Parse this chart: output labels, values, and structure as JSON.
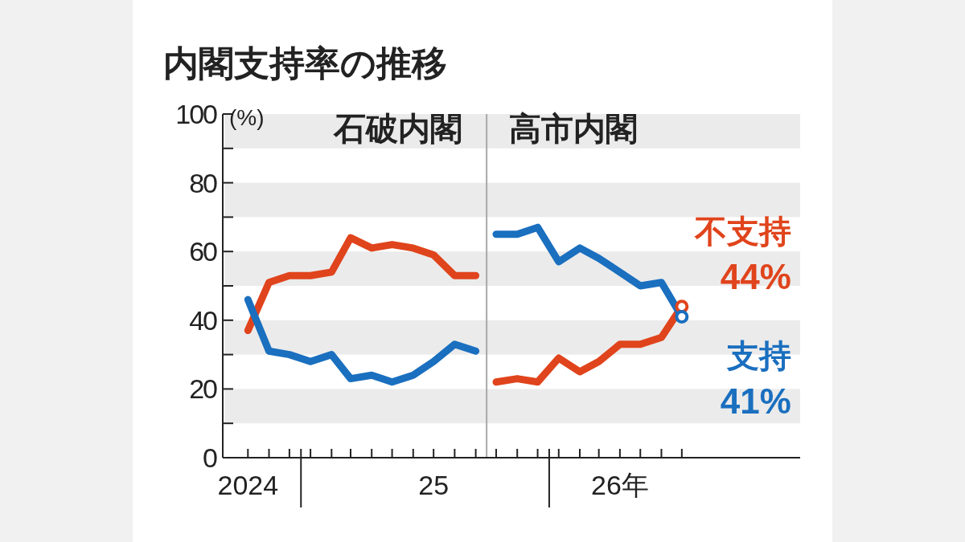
{
  "chart_data": {
    "type": "line",
    "title": "内閣支持率の推移",
    "ylabel": "(%)",
    "xlim": [
      "2024-09-08",
      "2027-01-05"
    ],
    "xticks": [
      {
        "value": "2024-10-15",
        "label": "2024"
      },
      {
        "value": "2024-11-15",
        "label": null
      },
      {
        "value": "2024-12-15",
        "label": null
      },
      {
        "value": "2025-01-01",
        "label": null
      },
      {
        "value": "2025-01-15",
        "label": null
      },
      {
        "value": "2025-02-15",
        "label": null
      },
      {
        "value": "2025-03-15",
        "label": null
      },
      {
        "value": "2025-04-15",
        "label": null
      },
      {
        "value": "2025-05-15",
        "label": null
      },
      {
        "value": "2025-06-15",
        "label": null
      },
      {
        "value": "2025-07-15",
        "label": "25"
      },
      {
        "value": "2025-08-15",
        "label": null
      },
      {
        "value": "2025-09-15",
        "label": null
      },
      {
        "value": "2025-10-15",
        "label": null
      },
      {
        "value": "2025-11-15",
        "label": null
      },
      {
        "value": "2025-12-15",
        "label": null
      },
      {
        "value": "2026-01-01",
        "label": null
      },
      {
        "value": "2026-01-15",
        "label": null
      },
      {
        "value": "2026-02-15",
        "label": null
      },
      {
        "value": "2026-03-15",
        "label": null
      },
      {
        "value": "2026-04-15",
        "label": "26年"
      },
      {
        "value": "2026-05-15",
        "label": null
      },
      {
        "value": "2026-06-15",
        "label": null
      },
      {
        "value": "2026-07-15",
        "label": null
      }
    ],
    "ylim": [
      0,
      100
    ],
    "yticks": [
      0,
      {
        "value": 10,
        "label": null
      },
      20,
      {
        "value": 30,
        "label": null
      },
      40,
      {
        "value": 50,
        "label": null
      },
      60,
      {
        "value": 70,
        "label": null
      },
      80,
      {
        "value": 90,
        "label": null
      },
      100
    ],
    "bands": [
      {
        "axis": "y",
        "from": 10,
        "to": 20,
        "color": "#ebebeb"
      },
      {
        "axis": "y",
        "from": 30,
        "to": 40,
        "color": "#ebebeb"
      },
      {
        "axis": "y",
        "from": 50,
        "to": 60,
        "color": "#ebebeb"
      },
      {
        "axis": "y",
        "from": 70,
        "to": 80,
        "color": "#ebebeb"
      },
      {
        "axis": "y",
        "from": 90,
        "to": 100,
        "color": "#ebebeb"
      }
    ],
    "ref_lines": [
      {
        "axis": "x",
        "value": "2025-10-01",
        "color": "#a8a8a8"
      }
    ],
    "legend": false,
    "grid": false,
    "marker": "none",
    "line_style": "solid",
    "series": [
      {
        "color": "#e0441c",
        "x": [
          "2024-10-15",
          "2024-11-15",
          "2024-12-15",
          "2025-01-15",
          "2025-02-15",
          "2025-03-15",
          "2025-04-15",
          "2025-05-15",
          "2025-06-15",
          "2025-07-15",
          "2025-08-15",
          "2025-09-15"
        ],
        "values": [
          37,
          51,
          53,
          53,
          54,
          64,
          61,
          62,
          61,
          59,
          53,
          53
        ]
      },
      {
        "color": "#1a6fbf",
        "x": [
          "2024-10-15",
          "2024-11-15",
          "2024-12-15",
          "2025-01-15",
          "2025-02-15",
          "2025-03-15",
          "2025-04-15",
          "2025-05-15",
          "2025-06-15",
          "2025-07-15",
          "2025-08-15",
          "2025-09-15"
        ],
        "values": [
          46,
          31,
          30,
          28,
          30,
          23,
          24,
          22,
          24,
          28,
          33,
          31
        ]
      },
      {
        "name": "不支持",
        "color": "#e0441c",
        "x": [
          "2025-10-15",
          "2025-11-15",
          "2025-12-15",
          "2026-01-15",
          "2026-02-15",
          "2026-03-15",
          "2026-04-15",
          "2026-05-15",
          "2026-06-15",
          "2026-07-15"
        ],
        "values": [
          22,
          23,
          22,
          29,
          25,
          28,
          33,
          33,
          35,
          44
        ]
      },
      {
        "name": "支持",
        "color": "#1a6fbf",
        "x": [
          "2025-10-15",
          "2025-11-15",
          "2025-12-15",
          "2026-01-15",
          "2026-02-15",
          "2026-03-15",
          "2026-04-15",
          "2026-05-15",
          "2026-06-15",
          "2026-07-15"
        ],
        "values": [
          65,
          65,
          67,
          57,
          61,
          58,
          54,
          50,
          51,
          41
        ]
      }
    ],
    "annotations": [
      "石破内閣",
      "高市内閣",
      {
        "text": "44%",
        "x": "2026-07-15",
        "y": 44
      },
      {
        "text": "41%",
        "x": "2026-07-15",
        "y": 41
      }
    ]
  }
}
